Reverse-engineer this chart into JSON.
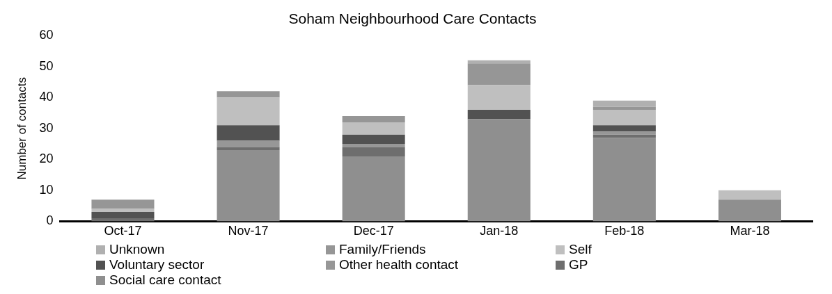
{
  "chart_data": {
    "type": "bar",
    "title": "Soham Neighbourhood Care Contacts",
    "ylabel": "Number of contacts",
    "categories": [
      "Oct-17",
      "Nov-17",
      "Dec-17",
      "Jan-18",
      "Feb-18",
      "Mar-18"
    ],
    "stacked": true,
    "ylim": [
      0,
      60
    ],
    "yticks": [
      0,
      10,
      20,
      30,
      40,
      50,
      60
    ],
    "grid": false,
    "legend": "bottom",
    "series": [
      {
        "name": "Social care contact",
        "color": "#8f8f8f",
        "values": [
          0,
          23,
          21,
          33,
          27,
          7
        ]
      },
      {
        "name": "GP",
        "color": "#6e6e6e",
        "values": [
          1,
          1,
          3,
          0,
          1,
          0
        ]
      },
      {
        "name": "Other health contact",
        "color": "#979797",
        "values": [
          0,
          2,
          1,
          0,
          1,
          0
        ]
      },
      {
        "name": "Voluntary sector",
        "color": "#525252",
        "values": [
          2,
          5,
          3,
          3,
          2,
          0
        ]
      },
      {
        "name": "Self",
        "color": "#bfbfbf",
        "values": [
          1,
          9,
          4,
          8,
          5,
          3
        ]
      },
      {
        "name": "Family/Friends",
        "color": "#969696",
        "values": [
          3,
          2,
          2,
          7,
          1,
          0
        ]
      },
      {
        "name": "Unknown",
        "color": "#b0b0b0",
        "values": [
          0,
          0,
          0,
          1,
          2,
          0
        ]
      }
    ]
  }
}
